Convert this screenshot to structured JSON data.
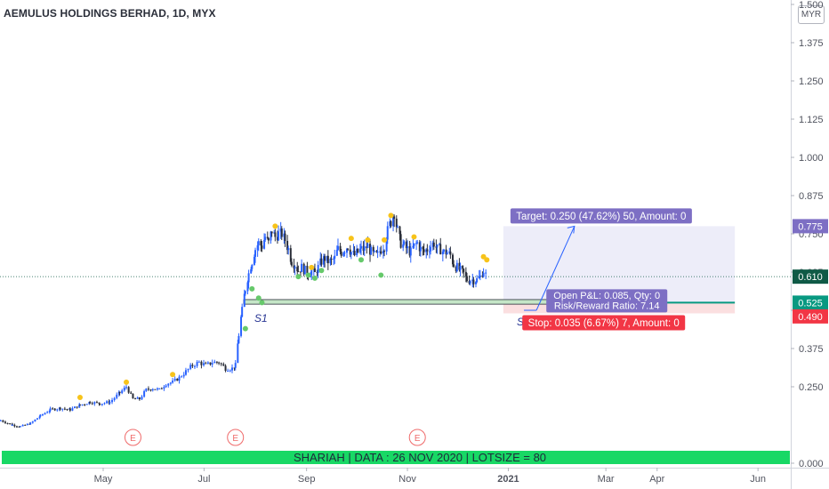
{
  "header": {
    "title": "AEMULUS HOLDINGS BERHAD, 1D, MYX",
    "currency_button": "MYR"
  },
  "colors": {
    "up": "#2962ff",
    "down": "#2a2e39",
    "dot_yellow": "#f7c31a",
    "dot_green": "#66c96b",
    "target_zone": "#ededf9",
    "stop_zone": "#fbdfe0",
    "support_zone": "#c5e6c7",
    "banner": "#18d865",
    "earnings": "#ef6a6a",
    "target_label": "#7d6fc4",
    "stop_label": "#f23645",
    "last_price_label": "#0f5a46",
    "entry_label": "#089981"
  },
  "annotations": {
    "s1": "S1",
    "s2": "S2 ??",
    "banner": "SHARIAH   |   DATA : 26 NOV 2020   |   LOTSIZE = 80",
    "target": "Target: 0.250 (47.62%) 50, Amount: 0",
    "pnl": "Open P&L: 0.085, Qty: 0",
    "rr": "Risk/Reward Ratio: 7.14",
    "stop": "Stop: 0.035 (6.67%) 7, Amount: 0",
    "earnings_marker": "E"
  },
  "chart_data": {
    "type": "candlestick",
    "title": "AEMULUS HOLDINGS BERHAD, 1D, MYX",
    "y_axis_ticks": [
      1.5,
      1.375,
      1.25,
      1.125,
      1.0,
      0.875,
      0.75,
      0.625,
      0.5,
      0.375,
      0.25,
      0.0
    ],
    "y_tick_labels": [
      "1.500",
      "1.375",
      "1.250",
      "1.125",
      "1.000",
      "0.875",
      "0.750",
      "0.625",
      "0.500",
      "0.375",
      "0.250",
      "0.000"
    ],
    "x_axis_labels": [
      "May",
      "Jul",
      "Sep",
      "Nov",
      "2021",
      "Mar",
      "Apr",
      "Jun"
    ],
    "x_axis_days": [
      0,
      61,
      123,
      184,
      245,
      304,
      335,
      396
    ],
    "ylim": [
      0.0,
      1.535
    ],
    "price_labels": {
      "target": "0.775",
      "last": "0.610",
      "entry": "0.525",
      "stop": "0.490"
    },
    "levels": {
      "target": 0.775,
      "last": 0.61,
      "entry": 0.525,
      "stop": 0.49,
      "support_low": 0.52,
      "support_high": 0.535
    },
    "position": {
      "start_day": 242,
      "end_day": 382
    },
    "earnings_days": [
      18,
      80,
      190
    ],
    "support_days": [
      85,
      305
    ],
    "arrow": {
      "from_day": 262,
      "from_price": 0.5,
      "to_day": 285,
      "to_price": 0.775
    },
    "price_path": [
      [
        -62,
        0.14
      ],
      [
        -55,
        0.125
      ],
      [
        -50,
        0.12
      ],
      [
        -44,
        0.13
      ],
      [
        -38,
        0.155
      ],
      [
        -32,
        0.175
      ],
      [
        -26,
        0.18
      ],
      [
        -20,
        0.175
      ],
      [
        -14,
        0.19
      ],
      [
        -8,
        0.2
      ],
      [
        -2,
        0.195
      ],
      [
        4,
        0.2
      ],
      [
        10,
        0.23
      ],
      [
        14,
        0.25
      ],
      [
        18,
        0.21
      ],
      [
        22,
        0.21
      ],
      [
        26,
        0.24
      ],
      [
        30,
        0.245
      ],
      [
        34,
        0.24
      ],
      [
        38,
        0.26
      ],
      [
        42,
        0.265
      ],
      [
        46,
        0.28
      ],
      [
        50,
        0.3
      ],
      [
        54,
        0.32
      ],
      [
        58,
        0.33
      ],
      [
        62,
        0.32
      ],
      [
        66,
        0.33
      ],
      [
        70,
        0.33
      ],
      [
        74,
        0.31
      ],
      [
        78,
        0.31
      ],
      [
        80,
        0.32
      ],
      [
        82,
        0.42
      ],
      [
        84,
        0.5
      ],
      [
        86,
        0.57
      ],
      [
        88,
        0.62
      ],
      [
        90,
        0.66
      ],
      [
        92,
        0.7
      ],
      [
        94,
        0.72
      ],
      [
        96,
        0.71
      ],
      [
        98,
        0.74
      ],
      [
        100,
        0.72
      ],
      [
        102,
        0.76
      ],
      [
        104,
        0.74
      ],
      [
        106,
        0.75
      ],
      [
        108,
        0.75
      ],
      [
        110,
        0.73
      ],
      [
        112,
        0.7
      ],
      [
        114,
        0.66
      ],
      [
        116,
        0.65
      ],
      [
        118,
        0.63
      ],
      [
        120,
        0.64
      ],
      [
        122,
        0.63
      ],
      [
        124,
        0.62
      ],
      [
        126,
        0.63
      ],
      [
        128,
        0.62
      ],
      [
        130,
        0.64
      ],
      [
        132,
        0.66
      ],
      [
        134,
        0.67
      ],
      [
        136,
        0.66
      ],
      [
        138,
        0.66
      ],
      [
        140,
        0.67
      ],
      [
        142,
        0.7
      ],
      [
        144,
        0.69
      ],
      [
        146,
        0.7
      ],
      [
        148,
        0.71
      ],
      [
        150,
        0.69
      ],
      [
        152,
        0.68
      ],
      [
        154,
        0.69
      ],
      [
        156,
        0.7
      ],
      [
        158,
        0.7
      ],
      [
        160,
        0.71
      ],
      [
        162,
        0.69
      ],
      [
        164,
        0.68
      ],
      [
        166,
        0.68
      ],
      [
        168,
        0.7
      ],
      [
        170,
        0.71
      ],
      [
        172,
        0.76
      ],
      [
        174,
        0.79
      ],
      [
        176,
        0.82
      ],
      [
        178,
        0.76
      ],
      [
        180,
        0.72
      ],
      [
        182,
        0.71
      ],
      [
        184,
        0.7
      ],
      [
        186,
        0.69
      ],
      [
        188,
        0.71
      ],
      [
        190,
        0.72
      ],
      [
        192,
        0.7
      ],
      [
        194,
        0.69
      ],
      [
        196,
        0.7
      ],
      [
        198,
        0.71
      ],
      [
        200,
        0.72
      ],
      [
        202,
        0.7
      ],
      [
        204,
        0.7
      ],
      [
        206,
        0.69
      ],
      [
        208,
        0.69
      ],
      [
        210,
        0.68
      ],
      [
        212,
        0.65
      ],
      [
        214,
        0.64
      ],
      [
        216,
        0.63
      ],
      [
        218,
        0.62
      ],
      [
        220,
        0.6
      ],
      [
        222,
        0.6
      ],
      [
        224,
        0.6
      ],
      [
        226,
        0.6
      ],
      [
        228,
        0.61
      ],
      [
        230,
        0.63
      ],
      [
        232,
        0.61
      ]
    ],
    "dots_yellow": [
      [
        -14,
        0.215
      ],
      [
        14,
        0.265
      ],
      [
        42,
        0.29
      ],
      [
        104,
        0.775
      ],
      [
        126,
        0.64
      ],
      [
        150,
        0.735
      ],
      [
        160,
        0.73
      ],
      [
        170,
        0.73
      ],
      [
        174,
        0.81
      ],
      [
        188,
        0.74
      ],
      [
        230,
        0.675
      ],
      [
        232,
        0.665
      ]
    ],
    "dots_green": [
      [
        86,
        0.44
      ],
      [
        90,
        0.57
      ],
      [
        94,
        0.54
      ],
      [
        96,
        0.525
      ],
      [
        118,
        0.61
      ],
      [
        124,
        0.615
      ],
      [
        128,
        0.605
      ],
      [
        132,
        0.63
      ],
      [
        156,
        0.665
      ],
      [
        168,
        0.615
      ]
    ]
  }
}
